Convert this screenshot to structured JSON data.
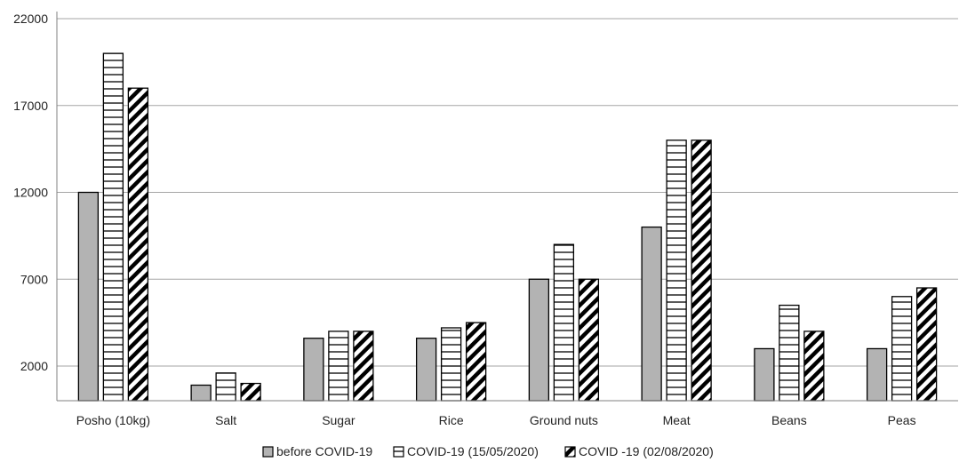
{
  "chart_data": {
    "type": "bar",
    "categories": [
      "Posho (10kg)",
      "Salt",
      "Sugar",
      "Rice",
      "Ground nuts",
      "Meat",
      "Beans",
      "Peas"
    ],
    "series": [
      {
        "name": "before COVID-19",
        "values": [
          12000,
          900,
          3600,
          3600,
          7000,
          10000,
          3000,
          3000
        ],
        "pattern": "solid",
        "color": "#b3b3b3"
      },
      {
        "name": "COVID-19 (15/05/2020)",
        "values": [
          20000,
          1600,
          4000,
          4200,
          9000,
          15000,
          5500,
          6000
        ],
        "pattern": "horizontal-lines",
        "color": "#000000"
      },
      {
        "name": "COVID -19 (02/08/2020)",
        "values": [
          18000,
          1000,
          4000,
          4500,
          7000,
          15000,
          4000,
          6500
        ],
        "pattern": "diagonal-stripes",
        "color": "#000000"
      }
    ],
    "yticks": [
      2000,
      7000,
      12000,
      17000,
      22000
    ],
    "ylim": [
      0,
      22000
    ],
    "grid": "horizontal",
    "legend": "bottom-center",
    "title": "",
    "xlabel": "",
    "ylabel": ""
  }
}
